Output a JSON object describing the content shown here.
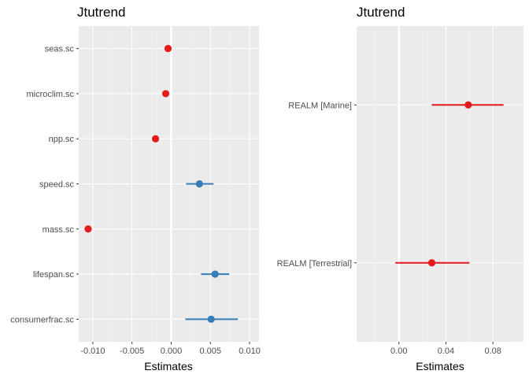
{
  "chart_data": [
    {
      "type": "forest",
      "title": "Jtutrend",
      "xlabel": "Estimates",
      "ylabel": "",
      "xlim": [
        -0.0118,
        0.0112
      ],
      "xticks": [
        -0.01,
        -0.005,
        0.0,
        0.005,
        0.01
      ],
      "xtick_labels": [
        "-0.010",
        "-0.005",
        "0.000",
        "0.005",
        "0.010"
      ],
      "grid": true,
      "legend": "none",
      "terms": [
        {
          "label": "seas.sc",
          "estimate": -0.0004,
          "low": null,
          "high": null,
          "color": "#e41a1c"
        },
        {
          "label": "microclim.sc",
          "estimate": -0.0007,
          "low": null,
          "high": null,
          "color": "#e41a1c"
        },
        {
          "label": "npp.sc",
          "estimate": -0.002,
          "low": null,
          "high": null,
          "color": "#e41a1c"
        },
        {
          "label": "speed.sc",
          "estimate": 0.0036,
          "low": 0.0019,
          "high": 0.0054,
          "color": "#377eb8"
        },
        {
          "label": "mass.sc",
          "estimate": -0.0106,
          "low": null,
          "high": null,
          "color": "#e41a1c"
        },
        {
          "label": "lifespan.sc",
          "estimate": 0.0056,
          "low": 0.0038,
          "high": 0.0074,
          "color": "#377eb8"
        },
        {
          "label": "consumerfrac.sc",
          "estimate": 0.0051,
          "low": 0.0018,
          "high": 0.0085,
          "color": "#377eb8"
        }
      ]
    },
    {
      "type": "forest",
      "title": "Jtutrend",
      "xlabel": "Estimates",
      "ylabel": "",
      "xlim": [
        -0.036,
        0.106
      ],
      "xticks": [
        0.0,
        0.04,
        0.08
      ],
      "xtick_labels": [
        "0.00",
        "0.04",
        "0.08"
      ],
      "grid": true,
      "legend": "none",
      "terms": [
        {
          "label": "REALM [Marine]",
          "estimate": 0.059,
          "low": 0.028,
          "high": 0.089,
          "color": "#e41a1c"
        },
        {
          "label": "REALM [Terrestrial]",
          "estimate": 0.028,
          "low": -0.003,
          "high": 0.06,
          "color": "#e41a1c"
        }
      ]
    }
  ]
}
